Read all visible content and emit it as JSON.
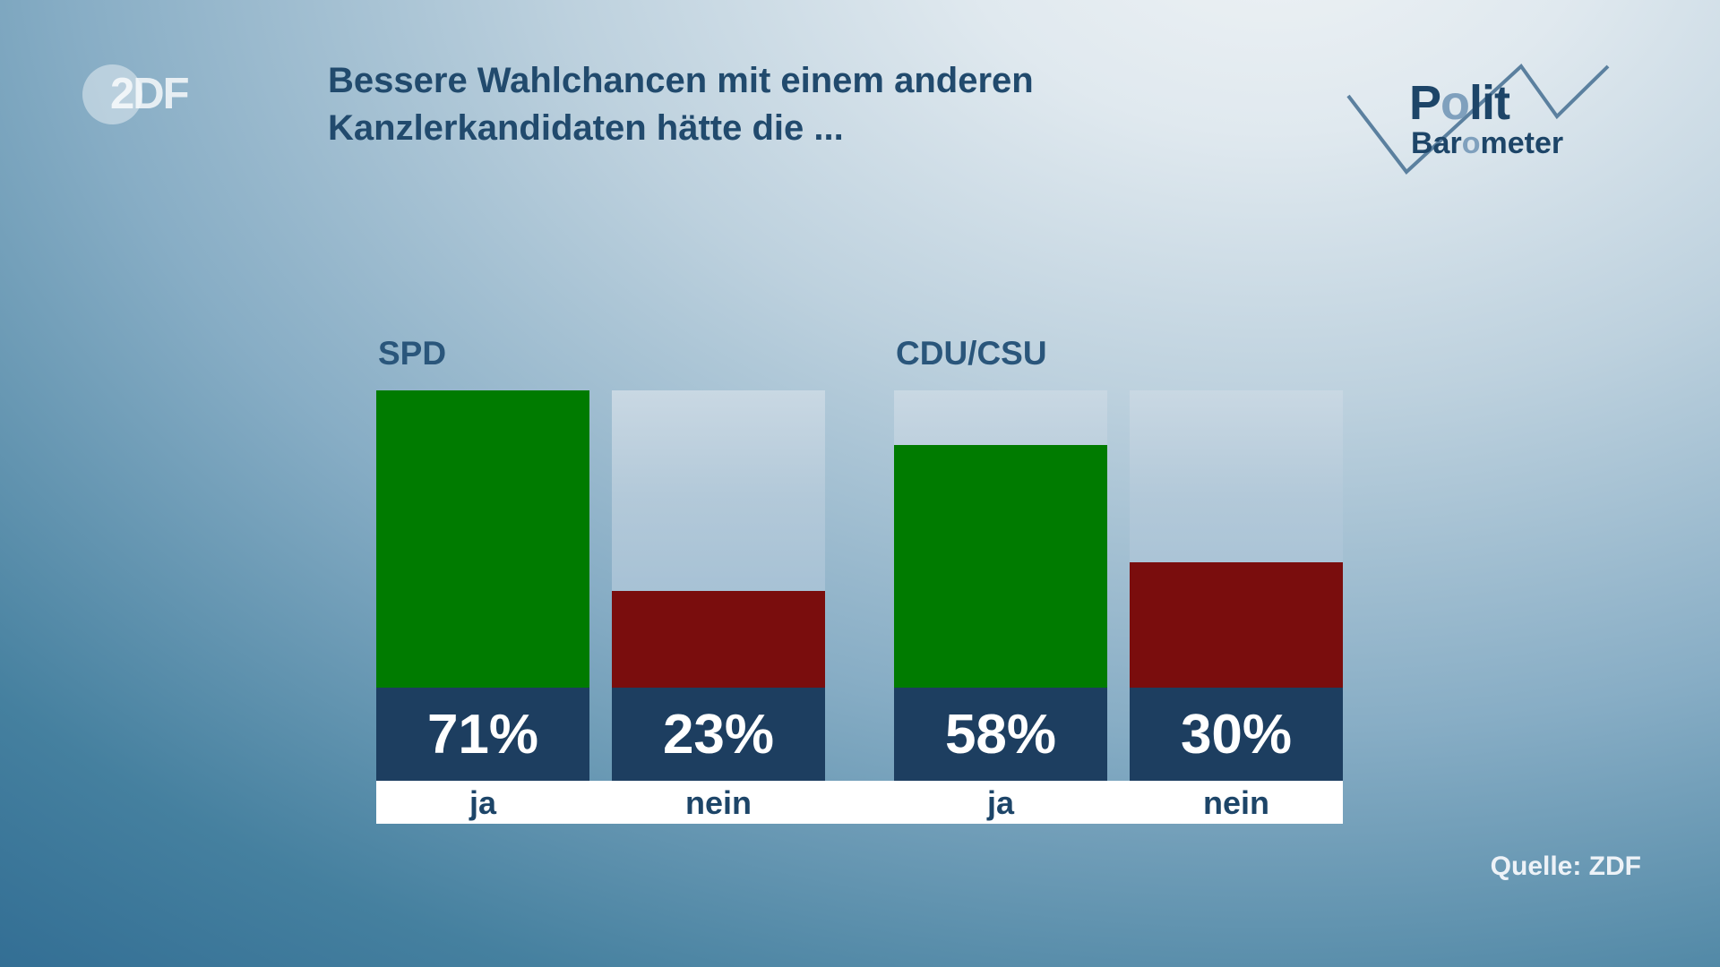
{
  "header": {
    "zdf_digit": "2",
    "zdf_letters": "DF",
    "title_line1": "Bessere Wahlchancen mit einem anderen",
    "title_line2": "Kanzlerkandidaten hätte die ...",
    "politbarometer": {
      "polit_p": "P",
      "polit_o": "o",
      "polit_rest": "lit",
      "baro_pre": "Bar",
      "baro_o": "o",
      "baro_rest": "meter"
    }
  },
  "footer": {
    "source": "Quelle: ZDF"
  },
  "chart_data": {
    "type": "bar",
    "title": "Bessere Wahlchancen mit einem anderen Kanzlerkandidaten hätte die ...",
    "unit": "%",
    "scale_max": 71,
    "axis": "none",
    "legend": "none",
    "groups": [
      {
        "label": "SPD",
        "bars": [
          {
            "category": "ja",
            "value": 71,
            "sentiment": "yes"
          },
          {
            "category": "nein",
            "value": 23,
            "sentiment": "no"
          }
        ]
      },
      {
        "label": "CDU/CSU",
        "bars": [
          {
            "category": "ja",
            "value": 58,
            "sentiment": "yes"
          },
          {
            "category": "nein",
            "value": 30,
            "sentiment": "no"
          }
        ]
      }
    ],
    "colors": {
      "yes": "#007b00",
      "no": "#7a0d0d",
      "track": "#a9c2d5",
      "value_band": "#1d3e60",
      "label_strip": "#ffffff",
      "value_text": "#ffffff",
      "answer_text": "#1d4568"
    }
  }
}
